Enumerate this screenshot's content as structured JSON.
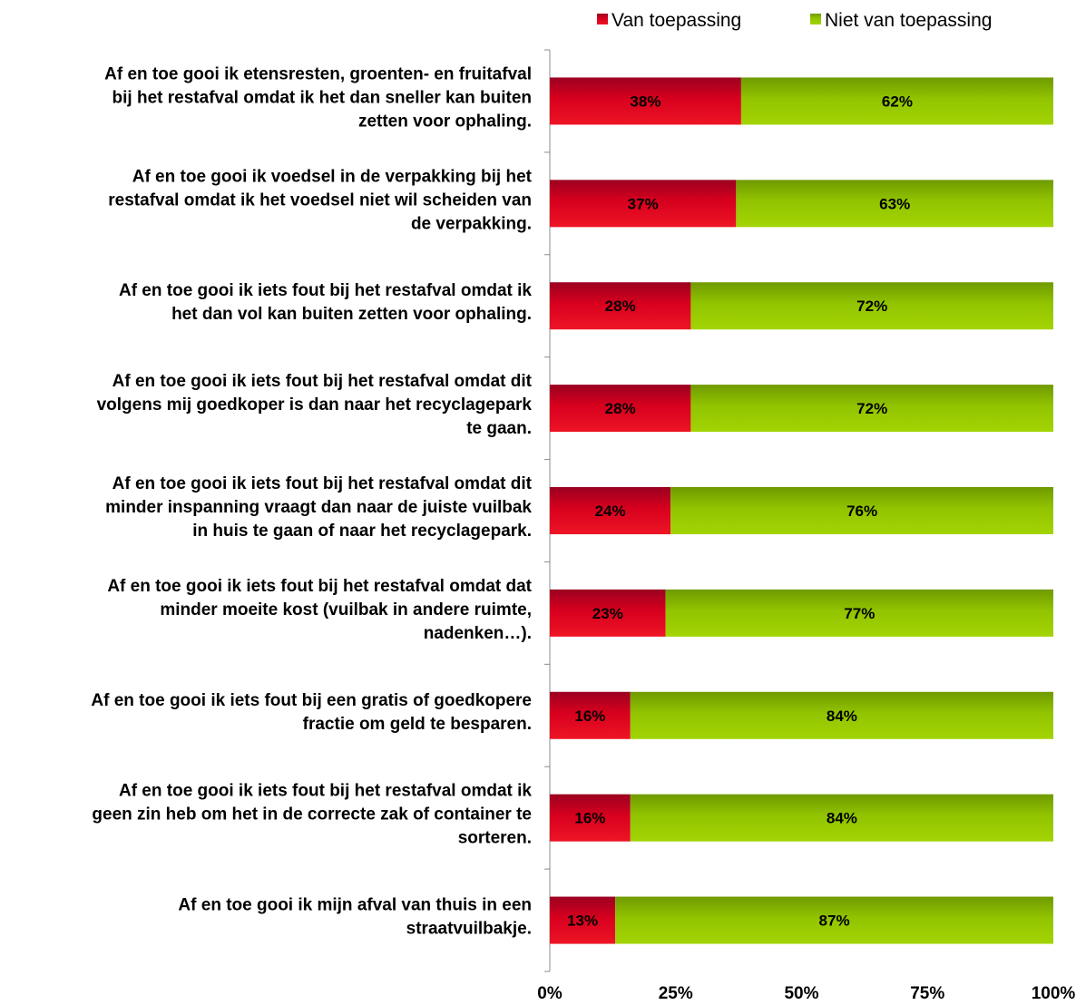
{
  "chart_data": {
    "type": "bar",
    "orientation": "horizontal",
    "stacked": "percent",
    "categories": [
      [
        "Af en toe gooi ik etensresten, groenten- en fruitafval",
        "bij het restafval omdat ik het dan sneller kan buiten",
        "zetten voor ophaling."
      ],
      [
        "Af en toe gooi ik voedsel in de verpakking bij het",
        "restafval omdat ik het voedsel niet wil scheiden van",
        "de verpakking."
      ],
      [
        "Af en toe gooi ik iets fout bij het restafval omdat ik",
        "het dan vol kan buiten zetten voor ophaling."
      ],
      [
        "Af en toe gooi ik iets fout bij het restafval omdat dit",
        "volgens mij goedkoper is dan naar het recyclagepark",
        "te gaan."
      ],
      [
        "Af en toe gooi ik iets fout bij het restafval omdat dit",
        "minder inspanning vraagt dan naar de juiste vuilbak",
        "in huis te gaan of naar het recyclagepark."
      ],
      [
        "Af en toe gooi ik iets fout bij het restafval omdat dat",
        "minder moeite kost (vuilbak in andere ruimte,",
        "nadenken…)."
      ],
      [
        "Af en toe gooi ik iets fout bij een gratis of goedkopere",
        "fractie om geld te besparen."
      ],
      [
        "Af en toe gooi ik iets fout bij het restafval omdat ik",
        "geen zin heb om het in de correcte zak of container te",
        "sorteren."
      ],
      [
        "Af en toe gooi ik mijn afval van thuis in een",
        "straatvuilbakje."
      ]
    ],
    "series": [
      {
        "name": "Van toepassing",
        "color": "#d7001e",
        "values": [
          38,
          37,
          28,
          28,
          24,
          23,
          16,
          16,
          13
        ],
        "labels": [
          "38%",
          "37%",
          "28%",
          "28%",
          "24%",
          "23%",
          "16%",
          "16%",
          "13%"
        ]
      },
      {
        "name": "Niet van toepassing",
        "color": "#92c400",
        "values": [
          62,
          63,
          72,
          72,
          76,
          77,
          84,
          84,
          87
        ],
        "labels": [
          "62%",
          "63%",
          "72%",
          "72%",
          "76%",
          "77%",
          "84%",
          "84%",
          "87%"
        ]
      }
    ],
    "xlim": [
      0,
      100
    ],
    "xticks": [
      "0%",
      "25%",
      "50%",
      "75%",
      "100%"
    ],
    "legend_position": "top-right",
    "grid": false
  }
}
